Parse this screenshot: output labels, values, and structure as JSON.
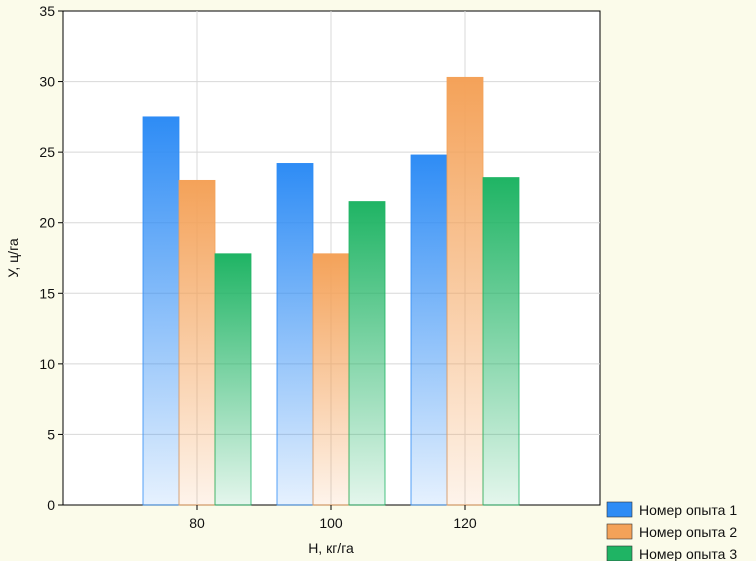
{
  "chart_data": {
    "type": "bar",
    "title": "",
    "xlabel": "Н, кг/га",
    "ylabel": "У, ц/га",
    "categories": [
      "80",
      "100",
      "120"
    ],
    "ylim": [
      0,
      35
    ],
    "yticks": [
      "0",
      "5",
      "10",
      "15",
      "20",
      "25",
      "30",
      "35"
    ],
    "grid": true,
    "legend_position": "bottom-right",
    "series": [
      {
        "name": "Номер опыта 1",
        "values": [
          27.5,
          24.2,
          24.8
        ],
        "color": "#2e8cf5"
      },
      {
        "name": "Номер опыта 2",
        "values": [
          23.0,
          17.8,
          30.3
        ],
        "color": "#f4a259"
      },
      {
        "name": "Номер опыта 3",
        "values": [
          17.8,
          21.5,
          23.2
        ],
        "color": "#1fb464"
      }
    ]
  }
}
